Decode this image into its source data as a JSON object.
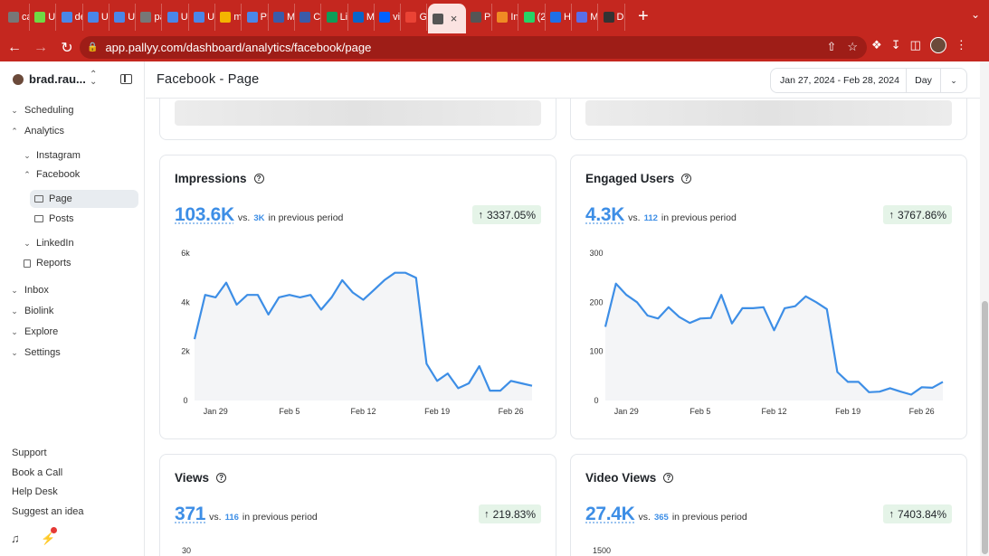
{
  "browser": {
    "tabs": [
      {
        "label": "ca",
        "color": "#777"
      },
      {
        "label": "Up",
        "color": "#6fda44"
      },
      {
        "label": "de",
        "color": "#4a86e8"
      },
      {
        "label": "Ur",
        "color": "#4a86e8"
      },
      {
        "label": "Ur",
        "color": "#4a86e8"
      },
      {
        "label": "pa",
        "color": "#777"
      },
      {
        "label": "Ur",
        "color": "#4a86e8"
      },
      {
        "label": "Ur",
        "color": "#4a86e8"
      },
      {
        "label": "ma",
        "color": "#f4b400"
      },
      {
        "label": "PR",
        "color": "#4a86e8"
      },
      {
        "label": "Me",
        "color": "#3b5ba9"
      },
      {
        "label": "Cli",
        "color": "#3b5ba9"
      },
      {
        "label": "Lis",
        "color": "#0f9d58"
      },
      {
        "label": "Ma",
        "color": "#0a64c8"
      },
      {
        "label": "vic",
        "color": "#0061ff"
      },
      {
        "label": "Go",
        "color": "#ea4335"
      },
      {
        "label": "",
        "color": "#555",
        "active": true
      },
      {
        "label": "Pu",
        "color": "#555"
      },
      {
        "label": "Ins",
        "color": "#f08a24"
      },
      {
        "label": "(2",
        "color": "#25d366"
      },
      {
        "label": "Ho",
        "color": "#1e6fe8"
      },
      {
        "label": "My",
        "color": "#5a6ee8"
      },
      {
        "label": "De",
        "color": "#333"
      }
    ],
    "new_tab": "+",
    "url": "app.pallyy.com/dashboard/analytics/facebook/page"
  },
  "sidebar": {
    "account_name": "brad.rau...",
    "items": [
      {
        "label": "Scheduling"
      },
      {
        "label": "Analytics"
      },
      {
        "label": "Instagram"
      },
      {
        "label": "Facebook"
      },
      {
        "label": "Page"
      },
      {
        "label": "Posts"
      },
      {
        "label": "LinkedIn"
      },
      {
        "label": "Reports"
      },
      {
        "label": "Inbox"
      },
      {
        "label": "Biolink"
      },
      {
        "label": "Explore"
      },
      {
        "label": "Settings"
      }
    ],
    "bottom": [
      "Support",
      "Book a Call",
      "Help Desk",
      "Suggest an idea"
    ]
  },
  "header": {
    "title": "Facebook - Page",
    "date_range": "Jan 27, 2024 - Feb 28, 2024",
    "granularity": "Day"
  },
  "cards": [
    {
      "title": "Impressions",
      "value": "103.6K",
      "vs": "vs.",
      "prev": "3K",
      "suffix": "in previous period",
      "change": "3337.05%"
    },
    {
      "title": "Engaged Users",
      "value": "4.3K",
      "vs": "vs.",
      "prev": "112",
      "suffix": "in previous period",
      "change": "3767.86%"
    },
    {
      "title": "Views",
      "value": "371",
      "vs": "vs.",
      "prev": "116",
      "suffix": "in previous period",
      "change": "219.83%"
    },
    {
      "title": "Video Views",
      "value": "27.4K",
      "vs": "vs.",
      "prev": "365",
      "suffix": "in previous period",
      "change": "7403.84%"
    }
  ],
  "chart_data": [
    {
      "type": "area",
      "title": "Impressions",
      "x_ticks": [
        "Jan 29",
        "Feb 5",
        "Feb 12",
        "Feb 19",
        "Feb 26"
      ],
      "y_ticks": [
        "0",
        "2k",
        "4k",
        "6k"
      ],
      "ylim": [
        0,
        6000
      ],
      "color": "#3d8ee6",
      "x": [
        "Jan 27",
        "Jan 28",
        "Jan 29",
        "Jan 30",
        "Jan 31",
        "Feb 1",
        "Feb 2",
        "Feb 3",
        "Feb 4",
        "Feb 5",
        "Feb 6",
        "Feb 7",
        "Feb 8",
        "Feb 9",
        "Feb 10",
        "Feb 11",
        "Feb 12",
        "Feb 13",
        "Feb 14",
        "Feb 15",
        "Feb 16",
        "Feb 17",
        "Feb 18",
        "Feb 19",
        "Feb 20",
        "Feb 21",
        "Feb 22",
        "Feb 23",
        "Feb 24",
        "Feb 25",
        "Feb 26",
        "Feb 27",
        "Feb 28"
      ],
      "values": [
        2500,
        4300,
        4200,
        4800,
        3900,
        4300,
        4300,
        3500,
        4200,
        4300,
        4200,
        4300,
        3700,
        4200,
        4900,
        4400,
        4100,
        4500,
        4900,
        5200,
        5200,
        5000,
        1500,
        800,
        1100,
        500,
        700,
        1400,
        400,
        400,
        800,
        700,
        600
      ]
    },
    {
      "type": "area",
      "title": "Engaged Users",
      "x_ticks": [
        "Jan 29",
        "Feb 5",
        "Feb 12",
        "Feb 19",
        "Feb 26"
      ],
      "y_ticks": [
        "0",
        "100",
        "200",
        "300"
      ],
      "ylim": [
        0,
        300
      ],
      "color": "#3d8ee6",
      "x": [
        "Jan 27",
        "Jan 28",
        "Jan 29",
        "Jan 30",
        "Jan 31",
        "Feb 1",
        "Feb 2",
        "Feb 3",
        "Feb 4",
        "Feb 5",
        "Feb 6",
        "Feb 7",
        "Feb 8",
        "Feb 9",
        "Feb 10",
        "Feb 11",
        "Feb 12",
        "Feb 13",
        "Feb 14",
        "Feb 15",
        "Feb 16",
        "Feb 17",
        "Feb 18",
        "Feb 19",
        "Feb 20",
        "Feb 21",
        "Feb 22",
        "Feb 23",
        "Feb 24",
        "Feb 25",
        "Feb 26",
        "Feb 27",
        "Feb 28"
      ],
      "values": [
        150,
        238,
        215,
        200,
        173,
        167,
        190,
        170,
        158,
        167,
        168,
        215,
        157,
        188,
        188,
        190,
        143,
        188,
        192,
        212,
        200,
        186,
        58,
        38,
        38,
        17,
        18,
        25,
        18,
        12,
        27,
        26,
        38
      ]
    }
  ],
  "views_chart_first_tick": "30",
  "video_chart_first_tick": "1500"
}
